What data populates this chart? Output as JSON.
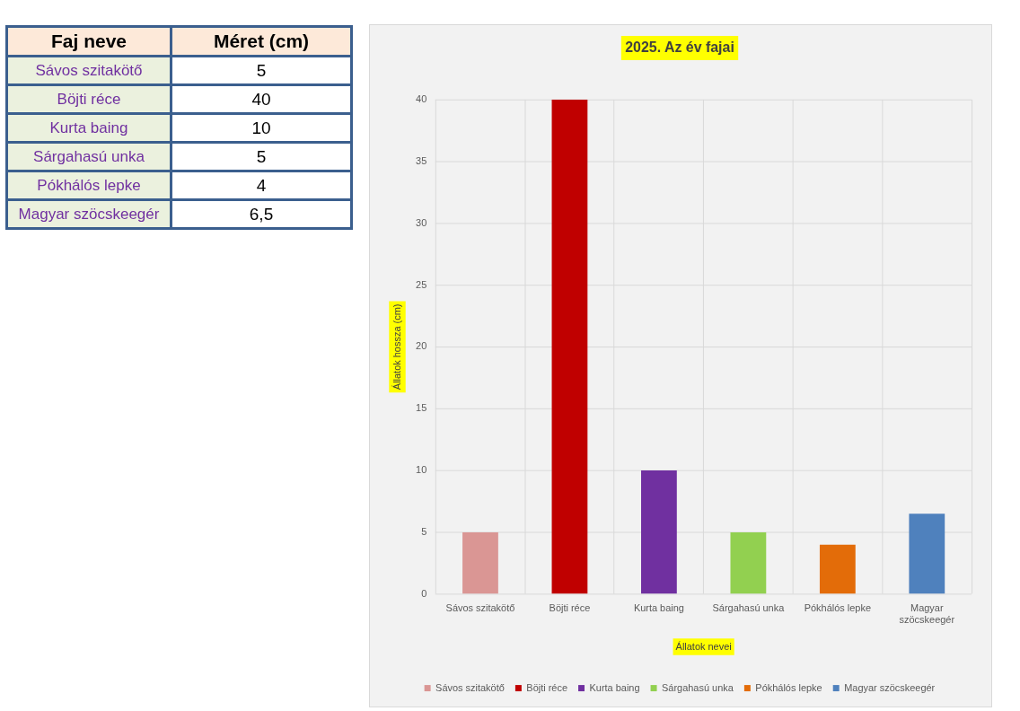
{
  "chart_data": [
    {
      "type": "other",
      "annotations": [
        "Faj neve",
        "Méret (cm)",
        "Sávos szitakötő",
        "5",
        "Böjti réce",
        "40",
        "Kurta baing",
        "10",
        "Sárgahasú unka",
        "5",
        "Pókhálós lepke",
        "4",
        "Magyar szöcskeegér",
        "6,5"
      ]
    },
    {
      "type": "bar",
      "title": "2025. Az év fajai",
      "xlabel": "Állatok nevei",
      "ylabel": "Állatok hossza (cm)",
      "categories": [
        "Sávos szitakötő",
        "Böjti réce",
        "Kurta baing",
        "Sárgahasú unka",
        "Pókhálós lepke",
        "Magyar szöcskeegér"
      ],
      "series": [
        {
          "name": "Sávos szitakötő",
          "color": "#da9694",
          "values": [
            5,
            null,
            null,
            null,
            null,
            null
          ]
        },
        {
          "name": "Böjti réce",
          "color": "#c00000",
          "values": [
            null,
            40,
            null,
            null,
            null,
            null
          ]
        },
        {
          "name": "Kurta baing",
          "color": "#7030a0",
          "values": [
            null,
            null,
            10,
            null,
            null,
            null
          ]
        },
        {
          "name": "Sárgahasú unka",
          "color": "#92d050",
          "values": [
            null,
            null,
            null,
            5,
            null,
            null
          ]
        },
        {
          "name": "Pókhálós lepke",
          "color": "#e36c09",
          "values": [
            null,
            null,
            null,
            null,
            4,
            null
          ]
        },
        {
          "name": "Magyar szöcskeegér",
          "color": "#4f81bd",
          "values": [
            null,
            null,
            null,
            null,
            null,
            6.5
          ]
        }
      ],
      "ylim": [
        0,
        40
      ],
      "yticks": [
        0,
        5,
        10,
        15,
        20,
        25,
        30,
        35,
        40
      ],
      "grid": true,
      "legend": "bottom"
    }
  ]
}
